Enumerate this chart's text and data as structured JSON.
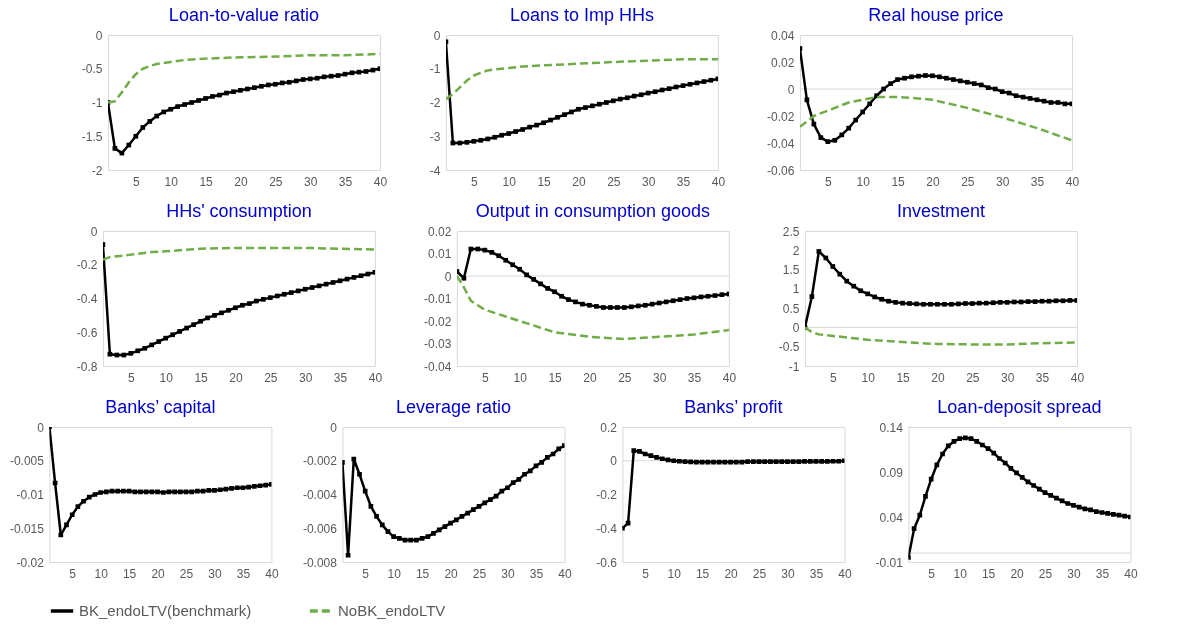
{
  "chart_data": [
    {
      "type": "line",
      "title": "Loan-to-value ratio",
      "xlim": [
        1,
        40
      ],
      "xticks": [
        5,
        10,
        15,
        20,
        25,
        30,
        35,
        40
      ],
      "ylim": [
        -2,
        0
      ],
      "yticks": [
        -2,
        -1.5,
        -1,
        -0.5,
        0
      ],
      "legend": "bottom",
      "series": [
        {
          "name": "BK_endoLTV(benchmark)",
          "color": "#000000",
          "marker": "square",
          "line_style": "solid",
          "x": [
            1,
            2,
            3,
            4,
            5,
            6,
            7,
            8,
            9,
            10,
            11,
            12,
            13,
            14,
            15,
            16,
            17,
            18,
            19,
            20,
            21,
            22,
            23,
            24,
            25,
            26,
            27,
            28,
            29,
            30,
            31,
            32,
            33,
            34,
            35,
            36,
            37,
            38,
            39,
            40
          ],
          "values": [
            -1.0,
            -1.68,
            -1.75,
            -1.63,
            -1.5,
            -1.37,
            -1.28,
            -1.2,
            -1.14,
            -1.1,
            -1.06,
            -1.03,
            -1.0,
            -0.97,
            -0.94,
            -0.91,
            -0.89,
            -0.86,
            -0.84,
            -0.82,
            -0.8,
            -0.78,
            -0.76,
            -0.74,
            -0.73,
            -0.71,
            -0.7,
            -0.68,
            -0.66,
            -0.65,
            -0.64,
            -0.62,
            -0.61,
            -0.6,
            -0.58,
            -0.56,
            -0.55,
            -0.54,
            -0.52,
            -0.5
          ]
        },
        {
          "name": "NoBK_endoLTV",
          "color": "#70ad47",
          "marker": "none",
          "line_style": "dashed",
          "x": [
            1,
            2,
            3,
            4,
            5,
            6,
            7,
            8,
            10,
            12,
            15,
            20,
            25,
            30,
            35,
            40
          ],
          "values": [
            -1.0,
            -0.98,
            -0.85,
            -0.7,
            -0.58,
            -0.5,
            -0.46,
            -0.43,
            -0.4,
            -0.37,
            -0.35,
            -0.33,
            -0.32,
            -0.3,
            -0.3,
            -0.28
          ]
        }
      ]
    },
    {
      "type": "line",
      "title": "Loans to Imp HHs",
      "xlim": [
        1,
        40
      ],
      "xticks": [
        5,
        10,
        15,
        20,
        25,
        30,
        35,
        40
      ],
      "ylim": [
        -4,
        0
      ],
      "yticks": [
        -4,
        -3,
        -2,
        -1,
        0
      ],
      "legend": "bottom",
      "series": [
        {
          "name": "BK_endoLTV(benchmark)",
          "color": "#000000",
          "marker": "square",
          "line_style": "solid",
          "x": [
            1,
            2,
            3,
            4,
            5,
            6,
            7,
            8,
            9,
            10,
            11,
            12,
            13,
            14,
            15,
            16,
            17,
            18,
            19,
            20,
            21,
            22,
            23,
            24,
            25,
            26,
            27,
            28,
            29,
            30,
            31,
            32,
            33,
            34,
            35,
            36,
            37,
            38,
            39,
            40
          ],
          "values": [
            -0.2,
            -3.2,
            -3.2,
            -3.18,
            -3.15,
            -3.12,
            -3.08,
            -3.03,
            -2.97,
            -2.92,
            -2.86,
            -2.8,
            -2.73,
            -2.67,
            -2.6,
            -2.52,
            -2.44,
            -2.36,
            -2.28,
            -2.2,
            -2.15,
            -2.1,
            -2.05,
            -2.0,
            -1.95,
            -1.9,
            -1.86,
            -1.81,
            -1.77,
            -1.72,
            -1.68,
            -1.63,
            -1.59,
            -1.54,
            -1.5,
            -1.46,
            -1.42,
            -1.38,
            -1.34,
            -1.3
          ]
        },
        {
          "name": "NoBK_endoLTV",
          "color": "#70ad47",
          "marker": "none",
          "line_style": "dashed",
          "x": [
            1,
            2,
            3,
            4,
            5,
            6,
            7,
            8,
            10,
            12,
            15,
            20,
            25,
            30,
            35,
            40
          ],
          "values": [
            -1.9,
            -1.75,
            -1.55,
            -1.35,
            -1.2,
            -1.12,
            -1.05,
            -1.02,
            -0.98,
            -0.93,
            -0.9,
            -0.85,
            -0.8,
            -0.76,
            -0.72,
            -0.72
          ]
        }
      ]
    },
    {
      "type": "line",
      "title": "Real house price",
      "xlim": [
        1,
        40
      ],
      "xticks": [
        5,
        10,
        15,
        20,
        25,
        30,
        35,
        40
      ],
      "ylim": [
        -0.06,
        0.04
      ],
      "yticks": [
        -0.06,
        -0.04,
        -0.02,
        0,
        0.02,
        0.04
      ],
      "legend": "bottom",
      "ref_lines": [
        {
          "axis": "y",
          "value": 0,
          "color": "#d9d9d9"
        }
      ],
      "series": [
        {
          "name": "BK_endoLTV(benchmark)",
          "color": "#000000",
          "marker": "square",
          "line_style": "solid",
          "x": [
            1,
            2,
            3,
            4,
            5,
            6,
            7,
            8,
            9,
            10,
            11,
            12,
            13,
            14,
            15,
            16,
            17,
            18,
            19,
            20,
            21,
            22,
            23,
            24,
            25,
            26,
            27,
            28,
            29,
            30,
            31,
            32,
            33,
            34,
            35,
            36,
            37,
            38,
            39,
            40
          ],
          "values": [
            0.03,
            -0.008,
            -0.026,
            -0.036,
            -0.039,
            -0.038,
            -0.034,
            -0.029,
            -0.023,
            -0.017,
            -0.011,
            -0.005,
            0.0,
            0.004,
            0.007,
            0.008,
            0.009,
            0.0095,
            0.01,
            0.0098,
            0.009,
            0.008,
            0.007,
            0.006,
            0.005,
            0.004,
            0.003,
            0.001,
            0.0,
            -0.002,
            -0.003,
            -0.005,
            -0.006,
            -0.007,
            -0.008,
            -0.009,
            -0.01,
            -0.01,
            -0.011,
            -0.011
          ]
        },
        {
          "name": "NoBK_endoLTV",
          "color": "#70ad47",
          "marker": "none",
          "line_style": "dashed",
          "x": [
            1,
            3,
            5,
            8,
            10,
            12,
            15,
            18,
            20,
            25,
            30,
            35,
            40
          ],
          "values": [
            -0.028,
            -0.02,
            -0.016,
            -0.01,
            -0.008,
            -0.006,
            -0.006,
            -0.007,
            -0.008,
            -0.014,
            -0.021,
            -0.029,
            -0.038
          ]
        }
      ]
    },
    {
      "type": "line",
      "title": "HHs' consumption",
      "xlim": [
        1,
        40
      ],
      "xticks": [
        5,
        10,
        15,
        20,
        25,
        30,
        35,
        40
      ],
      "ylim": [
        -0.8,
        0
      ],
      "yticks": [
        -0.8,
        -0.6,
        -0.4,
        -0.2,
        0
      ],
      "legend": "bottom",
      "series": [
        {
          "name": "BK_endoLTV(benchmark)",
          "color": "#000000",
          "marker": "square",
          "line_style": "solid",
          "x": [
            1,
            2,
            3,
            4,
            5,
            6,
            7,
            8,
            9,
            10,
            11,
            12,
            13,
            14,
            15,
            16,
            17,
            18,
            19,
            20,
            21,
            22,
            23,
            24,
            25,
            26,
            27,
            28,
            29,
            30,
            31,
            32,
            33,
            34,
            35,
            36,
            37,
            38,
            39,
            40
          ],
          "values": [
            -0.08,
            -0.73,
            -0.735,
            -0.735,
            -0.725,
            -0.71,
            -0.695,
            -0.675,
            -0.655,
            -0.635,
            -0.615,
            -0.595,
            -0.575,
            -0.555,
            -0.535,
            -0.515,
            -0.5,
            -0.485,
            -0.47,
            -0.455,
            -0.44,
            -0.43,
            -0.415,
            -0.405,
            -0.395,
            -0.385,
            -0.375,
            -0.365,
            -0.355,
            -0.345,
            -0.335,
            -0.325,
            -0.315,
            -0.305,
            -0.295,
            -0.285,
            -0.275,
            -0.265,
            -0.255,
            -0.245
          ]
        },
        {
          "name": "NoBK_endoLTV",
          "color": "#70ad47",
          "marker": "none",
          "line_style": "dashed",
          "x": [
            1,
            2,
            5,
            8,
            10,
            15,
            20,
            25,
            30,
            35,
            40
          ],
          "values": [
            -0.17,
            -0.155,
            -0.14,
            -0.125,
            -0.12,
            -0.105,
            -0.1,
            -0.1,
            -0.1,
            -0.105,
            -0.11
          ]
        }
      ]
    },
    {
      "type": "line",
      "title": "Output in consumption goods",
      "xlim": [
        1,
        40
      ],
      "xticks": [
        5,
        10,
        15,
        20,
        25,
        30,
        35,
        40
      ],
      "ylim": [
        -0.04,
        0.02
      ],
      "yticks": [
        -0.04,
        -0.03,
        -0.02,
        -0.01,
        0,
        0.01,
        0.02
      ],
      "legend": "bottom",
      "ref_lines": [
        {
          "axis": "y",
          "value": 0,
          "color": "#d9d9d9"
        }
      ],
      "series": [
        {
          "name": "BK_endoLTV(benchmark)",
          "color": "#000000",
          "marker": "square",
          "line_style": "solid",
          "x": [
            1,
            2,
            3,
            4,
            5,
            6,
            7,
            8,
            9,
            10,
            11,
            12,
            13,
            14,
            15,
            16,
            17,
            18,
            19,
            20,
            21,
            22,
            23,
            24,
            25,
            26,
            27,
            28,
            29,
            30,
            31,
            32,
            33,
            34,
            35,
            36,
            37,
            38,
            39,
            40
          ],
          "values": [
            0.002,
            -0.001,
            0.012,
            0.012,
            0.0115,
            0.0105,
            0.009,
            0.007,
            0.005,
            0.003,
            0.0005,
            -0.0015,
            -0.0035,
            -0.0055,
            -0.007,
            -0.009,
            -0.0105,
            -0.0115,
            -0.0125,
            -0.013,
            -0.0135,
            -0.014,
            -0.014,
            -0.014,
            -0.014,
            -0.0137,
            -0.0133,
            -0.013,
            -0.0125,
            -0.012,
            -0.0115,
            -0.011,
            -0.0105,
            -0.01,
            -0.0097,
            -0.0093,
            -0.009,
            -0.0087,
            -0.0083,
            -0.008
          ]
        },
        {
          "name": "NoBK_endoLTV",
          "color": "#70ad47",
          "marker": "none",
          "line_style": "dashed",
          "x": [
            1,
            2,
            3,
            4,
            5,
            8,
            10,
            13,
            15,
            20,
            25,
            30,
            35,
            40
          ],
          "values": [
            0.0,
            -0.005,
            -0.011,
            -0.013,
            -0.015,
            -0.018,
            -0.02,
            -0.023,
            -0.025,
            -0.027,
            -0.028,
            -0.027,
            -0.026,
            -0.024
          ]
        }
      ]
    },
    {
      "type": "line",
      "title": "Investment",
      "xlim": [
        1,
        40
      ],
      "xticks": [
        5,
        10,
        15,
        20,
        25,
        30,
        35,
        40
      ],
      "ylim": [
        -1,
        2.5
      ],
      "yticks": [
        -1,
        -0.5,
        0,
        0.5,
        1,
        1.5,
        2,
        2.5
      ],
      "legend": "bottom",
      "ref_lines": [
        {
          "axis": "y",
          "value": 0,
          "color": "#d9d9d9"
        }
      ],
      "series": [
        {
          "name": "BK_endoLTV(benchmark)",
          "color": "#000000",
          "marker": "square",
          "line_style": "solid",
          "x": [
            1,
            2,
            3,
            4,
            5,
            6,
            7,
            8,
            9,
            10,
            11,
            12,
            13,
            14,
            15,
            16,
            17,
            18,
            19,
            20,
            21,
            22,
            23,
            24,
            25,
            26,
            27,
            28,
            29,
            30,
            31,
            32,
            33,
            34,
            35,
            36,
            37,
            38,
            39,
            40
          ],
          "values": [
            0.0,
            0.8,
            1.97,
            1.8,
            1.58,
            1.38,
            1.2,
            1.07,
            0.95,
            0.87,
            0.79,
            0.73,
            0.68,
            0.65,
            0.63,
            0.62,
            0.61,
            0.6,
            0.6,
            0.6,
            0.6,
            0.6,
            0.61,
            0.62,
            0.62,
            0.63,
            0.63,
            0.64,
            0.65,
            0.65,
            0.66,
            0.66,
            0.67,
            0.67,
            0.68,
            0.68,
            0.69,
            0.69,
            0.7,
            0.7
          ]
        },
        {
          "name": "NoBK_endoLTV",
          "color": "#70ad47",
          "marker": "none",
          "line_style": "dashed",
          "x": [
            1,
            2,
            3,
            5,
            8,
            10,
            15,
            20,
            25,
            30,
            35,
            40
          ],
          "values": [
            0.0,
            -0.12,
            -0.18,
            -0.22,
            -0.28,
            -0.32,
            -0.38,
            -0.43,
            -0.44,
            -0.44,
            -0.41,
            -0.39
          ]
        }
      ]
    },
    {
      "type": "line",
      "title": "Banks’ capital",
      "xlim": [
        1,
        40
      ],
      "xticks": [
        5,
        10,
        15,
        20,
        25,
        30,
        35,
        40
      ],
      "ylim": [
        -0.02,
        0
      ],
      "yticks": [
        -0.02,
        -0.015,
        -0.01,
        -0.005,
        0
      ],
      "legend": "bottom",
      "series": [
        {
          "name": "BK_endoLTV(benchmark)",
          "color": "#000000",
          "marker": "square",
          "line_style": "solid",
          "x": [
            1,
            2,
            3,
            4,
            5,
            6,
            7,
            8,
            9,
            10,
            11,
            12,
            13,
            14,
            15,
            16,
            17,
            18,
            19,
            20,
            21,
            22,
            23,
            24,
            25,
            26,
            27,
            28,
            29,
            30,
            31,
            32,
            33,
            34,
            35,
            36,
            37,
            38,
            39,
            40
          ],
          "values": [
            0.0,
            -0.0083,
            -0.016,
            -0.0145,
            -0.013,
            -0.0118,
            -0.011,
            -0.0104,
            -0.01,
            -0.0097,
            -0.0096,
            -0.0095,
            -0.0095,
            -0.0095,
            -0.0095,
            -0.0096,
            -0.0096,
            -0.0096,
            -0.0096,
            -0.0096,
            -0.0097,
            -0.0096,
            -0.0096,
            -0.0096,
            -0.0096,
            -0.0096,
            -0.0095,
            -0.0095,
            -0.0094,
            -0.0094,
            -0.0093,
            -0.0092,
            -0.0091,
            -0.009,
            -0.009,
            -0.0089,
            -0.0088,
            -0.0087,
            -0.0086,
            -0.0085
          ]
        }
      ]
    },
    {
      "type": "line",
      "title": "Leverage ratio",
      "xlim": [
        1,
        40
      ],
      "xticks": [
        5,
        10,
        15,
        20,
        25,
        30,
        35,
        40
      ],
      "ylim": [
        -0.008,
        0
      ],
      "yticks": [
        -0.008,
        -0.006,
        -0.004,
        -0.002,
        0
      ],
      "legend": "bottom",
      "series": [
        {
          "name": "BK_endoLTV(benchmark)",
          "color": "#000000",
          "marker": "square",
          "line_style": "solid",
          "x": [
            1,
            2,
            3,
            4,
            5,
            6,
            7,
            8,
            9,
            10,
            11,
            12,
            13,
            14,
            15,
            16,
            17,
            18,
            19,
            20,
            21,
            22,
            23,
            24,
            25,
            26,
            27,
            28,
            29,
            30,
            31,
            32,
            33,
            34,
            35,
            36,
            37,
            38,
            39,
            40
          ],
          "values": [
            -0.0021,
            -0.0076,
            -0.0019,
            -0.0028,
            -0.0038,
            -0.0047,
            -0.0053,
            -0.0058,
            -0.0062,
            -0.0065,
            -0.0066,
            -0.0067,
            -0.0067,
            -0.0067,
            -0.0066,
            -0.0065,
            -0.0063,
            -0.0061,
            -0.0059,
            -0.0057,
            -0.0055,
            -0.0053,
            -0.0051,
            -0.0049,
            -0.0047,
            -0.0045,
            -0.0043,
            -0.0041,
            -0.0038,
            -0.0036,
            -0.0033,
            -0.0031,
            -0.0028,
            -0.0026,
            -0.0023,
            -0.0021,
            -0.0018,
            -0.0016,
            -0.0013,
            -0.0011
          ]
        }
      ]
    },
    {
      "type": "line",
      "title": "Banks’ profit",
      "xlim": [
        1,
        40
      ],
      "xticks": [
        5,
        10,
        15,
        20,
        25,
        30,
        35,
        40
      ],
      "ylim": [
        -0.6,
        0.2
      ],
      "yticks": [
        -0.6,
        -0.4,
        -0.2,
        0,
        0.2
      ],
      "legend": "bottom",
      "ref_lines": [
        {
          "axis": "y",
          "value": 0,
          "color": "#d9d9d9"
        }
      ],
      "series": [
        {
          "name": "BK_endoLTV(benchmark)",
          "color": "#000000",
          "marker": "square",
          "line_style": "solid",
          "x": [
            1,
            2,
            3,
            4,
            5,
            6,
            7,
            8,
            9,
            10,
            11,
            12,
            13,
            14,
            15,
            16,
            17,
            18,
            19,
            20,
            21,
            22,
            23,
            24,
            25,
            26,
            27,
            28,
            29,
            30,
            31,
            32,
            33,
            34,
            35,
            36,
            37,
            38,
            39,
            40
          ],
          "values": [
            -0.4,
            -0.37,
            0.06,
            0.055,
            0.04,
            0.03,
            0.02,
            0.012,
            0.005,
            0.0,
            -0.003,
            -0.005,
            -0.007,
            -0.008,
            -0.008,
            -0.008,
            -0.008,
            -0.008,
            -0.008,
            -0.008,
            -0.008,
            -0.008,
            -0.005,
            -0.005,
            -0.005,
            -0.005,
            -0.005,
            -0.005,
            -0.005,
            -0.005,
            -0.005,
            -0.005,
            -0.004,
            -0.004,
            -0.004,
            -0.004,
            -0.004,
            -0.003,
            -0.003,
            0.0
          ]
        }
      ]
    },
    {
      "type": "line",
      "title": "Loan-deposit spread",
      "xlim": [
        1,
        40
      ],
      "xticks": [
        5,
        10,
        15,
        20,
        25,
        30,
        35,
        40
      ],
      "ylim": [
        -0.01,
        0.14
      ],
      "yticks": [
        -0.01,
        0.04,
        0.09,
        0.14
      ],
      "legend": "bottom",
      "ref_lines": [
        {
          "axis": "y",
          "value": 0,
          "color": "#d9d9d9"
        }
      ],
      "series": [
        {
          "name": "BK_endoLTV(benchmark)",
          "color": "#000000",
          "marker": "square",
          "line_style": "solid",
          "x": [
            1,
            2,
            3,
            4,
            5,
            6,
            7,
            8,
            9,
            10,
            11,
            12,
            13,
            14,
            15,
            16,
            17,
            18,
            19,
            20,
            21,
            22,
            23,
            24,
            25,
            26,
            27,
            28,
            29,
            30,
            31,
            32,
            33,
            34,
            35,
            36,
            37,
            38,
            39,
            40
          ],
          "values": [
            -0.005,
            0.027,
            0.042,
            0.063,
            0.082,
            0.098,
            0.11,
            0.119,
            0.124,
            0.127,
            0.128,
            0.127,
            0.124,
            0.12,
            0.116,
            0.111,
            0.105,
            0.1,
            0.094,
            0.089,
            0.084,
            0.079,
            0.075,
            0.071,
            0.067,
            0.064,
            0.061,
            0.058,
            0.055,
            0.053,
            0.051,
            0.049,
            0.048,
            0.046,
            0.045,
            0.044,
            0.043,
            0.042,
            0.041,
            0.04
          ]
        }
      ]
    }
  ]
}
